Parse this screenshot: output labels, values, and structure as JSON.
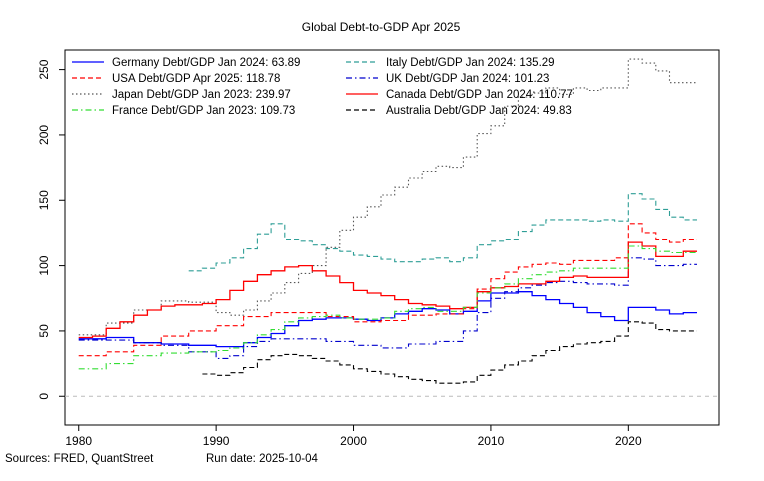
{
  "chart_data": {
    "type": "line",
    "title": "Global Debt-to-GDP Apr 2025",
    "xlabel": "",
    "ylabel": "",
    "xlim": [
      1979.0,
      2026.6
    ],
    "ylim": [
      -22,
      265
    ],
    "x_ticks": [
      1980,
      1990,
      2000,
      2010,
      2020
    ],
    "y_ticks": [
      0,
      50,
      100,
      150,
      200,
      250
    ],
    "grid": false,
    "zero_line": true,
    "legend_position": "top-left",
    "footer_left": "Sources: FRED, QuantStreet",
    "footer_right": "Run date: 2025-10-04",
    "series": [
      {
        "name": "Germany Debt/GDP Jan 2024: 63.89",
        "color": "#0000ff",
        "dash": "solid",
        "points": [
          [
            1980,
            44
          ],
          [
            1982,
            45
          ],
          [
            1984,
            41
          ],
          [
            1986,
            40
          ],
          [
            1988,
            39
          ],
          [
            1990,
            38
          ],
          [
            1991,
            38
          ],
          [
            1992,
            41
          ],
          [
            1993,
            45
          ],
          [
            1994,
            48
          ],
          [
            1995,
            54
          ],
          [
            1996,
            58
          ],
          [
            1997,
            59
          ],
          [
            1998,
            60
          ],
          [
            1999,
            60
          ],
          [
            2000,
            59
          ],
          [
            2001,
            58
          ],
          [
            2002,
            60
          ],
          [
            2003,
            63
          ],
          [
            2004,
            65
          ],
          [
            2005,
            67
          ],
          [
            2006,
            66
          ],
          [
            2007,
            63
          ],
          [
            2008,
            65
          ],
          [
            2009,
            73
          ],
          [
            2010,
            79
          ],
          [
            2011,
            79
          ],
          [
            2012,
            80
          ],
          [
            2013,
            77
          ],
          [
            2014,
            74
          ],
          [
            2015,
            71
          ],
          [
            2016,
            68
          ],
          [
            2017,
            64
          ],
          [
            2018,
            61
          ],
          [
            2019,
            58
          ],
          [
            2020,
            68
          ],
          [
            2021,
            68
          ],
          [
            2022,
            66
          ],
          [
            2023,
            63
          ],
          [
            2024,
            64
          ],
          [
            2025,
            64
          ]
        ]
      },
      {
        "name": "Italy Debt/GDP Jan 2024: 135.29",
        "color": "#2e9e96",
        "dash": "dashed",
        "points": [
          [
            1988,
            96
          ],
          [
            1989,
            98
          ],
          [
            1990,
            102
          ],
          [
            1991,
            106
          ],
          [
            1992,
            113
          ],
          [
            1993,
            124
          ],
          [
            1994,
            132
          ],
          [
            1995,
            120
          ],
          [
            1996,
            119
          ],
          [
            1997,
            116
          ],
          [
            1998,
            113
          ],
          [
            1999,
            111
          ],
          [
            2000,
            108
          ],
          [
            2001,
            107
          ],
          [
            2002,
            105
          ],
          [
            2003,
            103
          ],
          [
            2004,
            103
          ],
          [
            2005,
            105
          ],
          [
            2006,
            106
          ],
          [
            2007,
            103
          ],
          [
            2008,
            106
          ],
          [
            2009,
            116
          ],
          [
            2010,
            119
          ],
          [
            2011,
            120
          ],
          [
            2012,
            126
          ],
          [
            2013,
            131
          ],
          [
            2014,
            135
          ],
          [
            2015,
            135
          ],
          [
            2016,
            135
          ],
          [
            2017,
            134
          ],
          [
            2018,
            135
          ],
          [
            2019,
            134
          ],
          [
            2020,
            155
          ],
          [
            2021,
            151
          ],
          [
            2022,
            143
          ],
          [
            2023,
            137
          ],
          [
            2024,
            135
          ],
          [
            2025,
            135
          ]
        ]
      },
      {
        "name": "USA Debt/GDP Apr 2025: 118.78",
        "color": "#ff0000",
        "dash": "dashed",
        "points": [
          [
            1980,
            31
          ],
          [
            1982,
            34
          ],
          [
            1984,
            39
          ],
          [
            1986,
            46
          ],
          [
            1988,
            50
          ],
          [
            1990,
            54
          ],
          [
            1992,
            61
          ],
          [
            1994,
            64
          ],
          [
            1996,
            64
          ],
          [
            1998,
            61
          ],
          [
            2000,
            57
          ],
          [
            2002,
            58
          ],
          [
            2004,
            62
          ],
          [
            2006,
            63
          ],
          [
            2008,
            67
          ],
          [
            2009,
            82
          ],
          [
            2010,
            90
          ],
          [
            2011,
            95
          ],
          [
            2012,
            99
          ],
          [
            2013,
            101
          ],
          [
            2014,
            102
          ],
          [
            2015,
            101
          ],
          [
            2016,
            104
          ],
          [
            2017,
            104
          ],
          [
            2018,
            104
          ],
          [
            2019,
            106
          ],
          [
            2020,
            132
          ],
          [
            2021,
            125
          ],
          [
            2022,
            120
          ],
          [
            2023,
            118
          ],
          [
            2024,
            120
          ],
          [
            2025,
            120
          ]
        ]
      },
      {
        "name": "UK Debt/GDP Jan 2024: 101.23",
        "color": "#0000cd",
        "dash": "dashdot",
        "points": [
          [
            1980,
            43
          ],
          [
            1982,
            43
          ],
          [
            1984,
            41
          ],
          [
            1986,
            39
          ],
          [
            1988,
            34
          ],
          [
            1990,
            29
          ],
          [
            1991,
            31
          ],
          [
            1992,
            38
          ],
          [
            1993,
            42
          ],
          [
            1994,
            44
          ],
          [
            1996,
            44
          ],
          [
            1998,
            42
          ],
          [
            2000,
            39
          ],
          [
            2002,
            37
          ],
          [
            2004,
            40
          ],
          [
            2006,
            42
          ],
          [
            2008,
            50
          ],
          [
            2009,
            64
          ],
          [
            2010,
            75
          ],
          [
            2011,
            80
          ],
          [
            2012,
            83
          ],
          [
            2013,
            85
          ],
          [
            2014,
            87
          ],
          [
            2015,
            88
          ],
          [
            2016,
            87
          ],
          [
            2017,
            86
          ],
          [
            2018,
            86
          ],
          [
            2019,
            85
          ],
          [
            2020,
            106
          ],
          [
            2021,
            105
          ],
          [
            2022,
            100
          ],
          [
            2023,
            100
          ],
          [
            2024,
            101
          ],
          [
            2025,
            101
          ]
        ]
      },
      {
        "name": "Japan Debt/GDP Jan 2023: 239.97",
        "color": "#555555",
        "dash": "dotted",
        "points": [
          [
            1980,
            47
          ],
          [
            1982,
            56
          ],
          [
            1984,
            66
          ],
          [
            1986,
            73
          ],
          [
            1988,
            72
          ],
          [
            1990,
            64
          ],
          [
            1991,
            62
          ],
          [
            1992,
            66
          ],
          [
            1993,
            73
          ],
          [
            1994,
            79
          ],
          [
            1995,
            87
          ],
          [
            1996,
            94
          ],
          [
            1997,
            100
          ],
          [
            1998,
            114
          ],
          [
            1999,
            127
          ],
          [
            2000,
            137
          ],
          [
            2001,
            145
          ],
          [
            2002,
            154
          ],
          [
            2003,
            160
          ],
          [
            2004,
            167
          ],
          [
            2005,
            172
          ],
          [
            2006,
            176
          ],
          [
            2007,
            175
          ],
          [
            2008,
            183
          ],
          [
            2009,
            201
          ],
          [
            2010,
            207
          ],
          [
            2011,
            222
          ],
          [
            2012,
            229
          ],
          [
            2013,
            232
          ],
          [
            2014,
            236
          ],
          [
            2015,
            231
          ],
          [
            2016,
            236
          ],
          [
            2017,
            234
          ],
          [
            2018,
            236
          ],
          [
            2019,
            236
          ],
          [
            2020,
            258
          ],
          [
            2021,
            255
          ],
          [
            2022,
            249
          ],
          [
            2023,
            240
          ],
          [
            2024,
            240
          ],
          [
            2025,
            240
          ]
        ]
      },
      {
        "name": "Canada Debt/GDP Jan 2024: 110.77",
        "color": "#ff0000",
        "dash": "solid",
        "points": [
          [
            1980,
            45
          ],
          [
            1981,
            46
          ],
          [
            1982,
            52
          ],
          [
            1983,
            57
          ],
          [
            1984,
            62
          ],
          [
            1985,
            66
          ],
          [
            1986,
            69
          ],
          [
            1987,
            70
          ],
          [
            1988,
            70
          ],
          [
            1989,
            71
          ],
          [
            1990,
            74
          ],
          [
            1991,
            81
          ],
          [
            1992,
            88
          ],
          [
            1993,
            93
          ],
          [
            1994,
            96
          ],
          [
            1995,
            99
          ],
          [
            1996,
            100
          ],
          [
            1997,
            96
          ],
          [
            1998,
            92
          ],
          [
            1999,
            87
          ],
          [
            2000,
            81
          ],
          [
            2001,
            79
          ],
          [
            2002,
            77
          ],
          [
            2003,
            74
          ],
          [
            2004,
            71
          ],
          [
            2005,
            70
          ],
          [
            2006,
            69
          ],
          [
            2007,
            67
          ],
          [
            2008,
            68
          ],
          [
            2009,
            80
          ],
          [
            2010,
            83
          ],
          [
            2011,
            84
          ],
          [
            2012,
            86
          ],
          [
            2013,
            86
          ],
          [
            2014,
            88
          ],
          [
            2015,
            91
          ],
          [
            2016,
            92
          ],
          [
            2017,
            91
          ],
          [
            2018,
            91
          ],
          [
            2019,
            91
          ],
          [
            2020,
            118
          ],
          [
            2021,
            115
          ],
          [
            2022,
            107
          ],
          [
            2023,
            107
          ],
          [
            2024,
            111
          ],
          [
            2025,
            111
          ]
        ]
      },
      {
        "name": "France Debt/GDP Jan 2023: 109.73",
        "color": "#33dd33",
        "dash": "dashdot",
        "points": [
          [
            1980,
            21
          ],
          [
            1982,
            25
          ],
          [
            1984,
            31
          ],
          [
            1986,
            33
          ],
          [
            1988,
            34
          ],
          [
            1990,
            35
          ],
          [
            1991,
            37
          ],
          [
            1992,
            41
          ],
          [
            1993,
            47
          ],
          [
            1994,
            51
          ],
          [
            1995,
            57
          ],
          [
            1996,
            60
          ],
          [
            1997,
            61
          ],
          [
            1998,
            62
          ],
          [
            1999,
            60
          ],
          [
            2000,
            59
          ],
          [
            2001,
            59
          ],
          [
            2002,
            60
          ],
          [
            2003,
            65
          ],
          [
            2004,
            67
          ],
          [
            2005,
            68
          ],
          [
            2006,
            65
          ],
          [
            2007,
            65
          ],
          [
            2008,
            68
          ],
          [
            2009,
            79
          ],
          [
            2010,
            83
          ],
          [
            2011,
            86
          ],
          [
            2012,
            90
          ],
          [
            2013,
            93
          ],
          [
            2014,
            95
          ],
          [
            2015,
            96
          ],
          [
            2016,
            98
          ],
          [
            2017,
            98
          ],
          [
            2018,
            98
          ],
          [
            2019,
            98
          ],
          [
            2020,
            115
          ],
          [
            2021,
            113
          ],
          [
            2022,
            111
          ],
          [
            2023,
            110
          ],
          [
            2024,
            110
          ],
          [
            2025,
            110
          ]
        ]
      },
      {
        "name": "Australia Debt/GDP Jan 2024: 49.83",
        "color": "#000000",
        "dash": "dashed",
        "points": [
          [
            1989,
            17
          ],
          [
            1990,
            16
          ],
          [
            1991,
            18
          ],
          [
            1992,
            22
          ],
          [
            1993,
            28
          ],
          [
            1994,
            31
          ],
          [
            1995,
            32
          ],
          [
            1996,
            31
          ],
          [
            1997,
            29
          ],
          [
            1998,
            27
          ],
          [
            1999,
            24
          ],
          [
            2000,
            21
          ],
          [
            2001,
            19
          ],
          [
            2002,
            17
          ],
          [
            2003,
            15
          ],
          [
            2004,
            13
          ],
          [
            2005,
            12
          ],
          [
            2006,
            10
          ],
          [
            2007,
            10
          ],
          [
            2008,
            11
          ],
          [
            2009,
            16
          ],
          [
            2010,
            20
          ],
          [
            2011,
            24
          ],
          [
            2012,
            27
          ],
          [
            2013,
            31
          ],
          [
            2014,
            35
          ],
          [
            2015,
            38
          ],
          [
            2016,
            40
          ],
          [
            2017,
            41
          ],
          [
            2018,
            42
          ],
          [
            2019,
            46
          ],
          [
            2020,
            57
          ],
          [
            2021,
            56
          ],
          [
            2022,
            51
          ],
          [
            2023,
            50
          ],
          [
            2024,
            50
          ],
          [
            2025,
            50
          ]
        ]
      }
    ]
  }
}
